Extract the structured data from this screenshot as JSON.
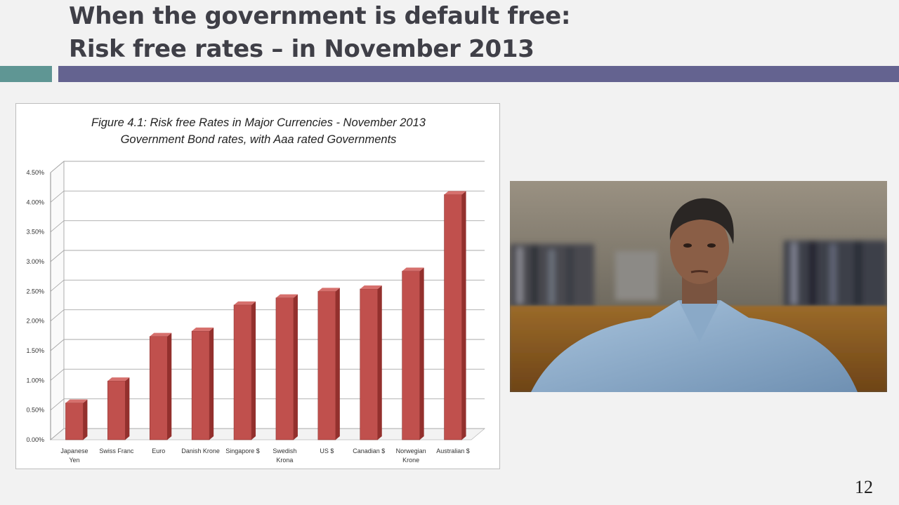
{
  "slide": {
    "title_line1": "When the government is default free:",
    "title_line2": "Risk free rates – in November 2013",
    "page_number": "12"
  },
  "colors": {
    "accent_teal": "#5f9694",
    "accent_purple": "#646390",
    "bar_fill": "#c0504d"
  },
  "chart_data": {
    "type": "bar",
    "title": "Figure 4.1: Risk free Rates in Major Currencies - November 2013",
    "subtitle": "Government Bond rates, with Aaa rated Governments",
    "xlabel": "",
    "ylabel": "",
    "categories": [
      [
        "Japanese",
        "Yen"
      ],
      [
        "Swiss Franc"
      ],
      [
        "Euro"
      ],
      [
        "Danish Krone"
      ],
      [
        "Singapore $"
      ],
      [
        "Swedish",
        "Krona"
      ],
      [
        "US $"
      ],
      [
        "Canadian $"
      ],
      [
        "Norwegian",
        "Krone"
      ],
      [
        "Australian $"
      ]
    ],
    "values": [
      0.62,
      0.99,
      1.74,
      1.83,
      2.27,
      2.39,
      2.5,
      2.54,
      2.84,
      4.13
    ],
    "y_ticks": [
      "0.00%",
      "0.50%",
      "1.00%",
      "1.50%",
      "2.00%",
      "2.50%",
      "3.00%",
      "3.50%",
      "4.00%",
      "4.50%"
    ],
    "ylim": [
      0,
      4.5
    ],
    "grid": true,
    "legend": "none",
    "style": "3d-column"
  },
  "video": {
    "description_icon": "presenter-video"
  }
}
